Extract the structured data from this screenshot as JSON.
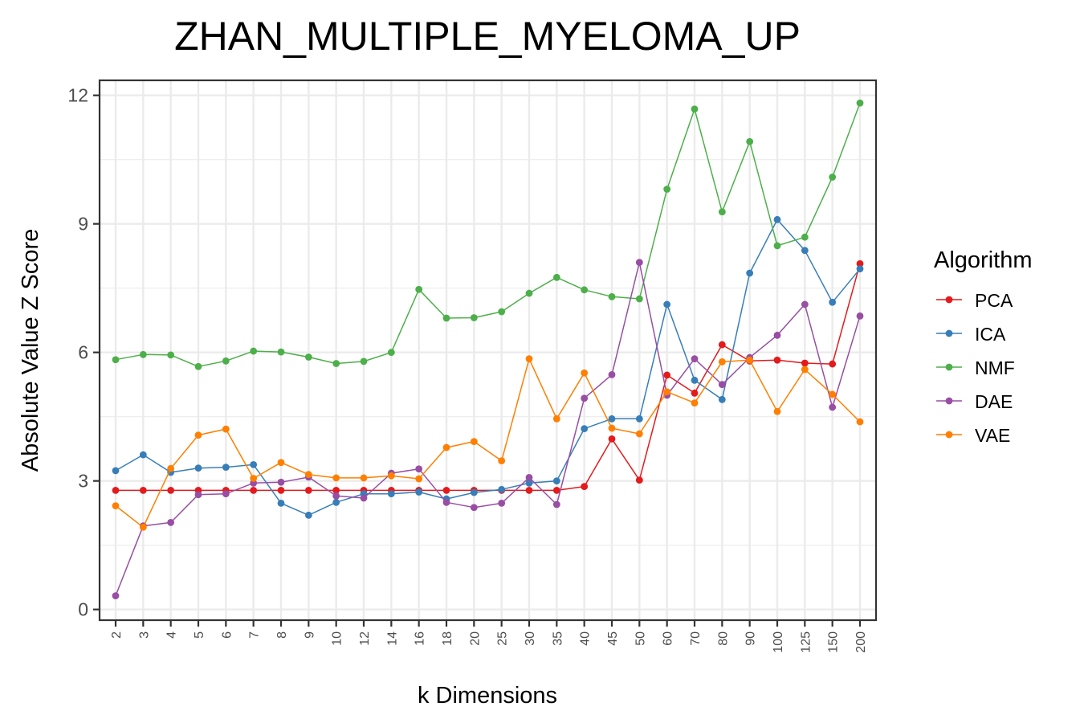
{
  "chart_data": {
    "type": "line",
    "title": "ZHAN_MULTIPLE_MYELOMA_UP",
    "xlabel": "k Dimensions",
    "ylabel": "Absolute Value Z Score",
    "categories": [
      "2",
      "3",
      "4",
      "5",
      "6",
      "7",
      "8",
      "9",
      "10",
      "12",
      "14",
      "16",
      "18",
      "20",
      "25",
      "30",
      "35",
      "40",
      "45",
      "50",
      "60",
      "70",
      "80",
      "90",
      "100",
      "125",
      "150",
      "200"
    ],
    "yticks": [
      0,
      3,
      6,
      9,
      12
    ],
    "ytick_labels": [
      "0",
      "3",
      "6",
      "9",
      "12"
    ],
    "ylim": [
      -0.25,
      12.35
    ],
    "grid": true,
    "legend": {
      "title": "Algorithm",
      "position": "right"
    },
    "series": [
      {
        "name": "PCA",
        "color": "#E41A1C",
        "values": [
          2.78,
          2.78,
          2.78,
          2.78,
          2.78,
          2.78,
          2.78,
          2.78,
          2.78,
          2.78,
          2.78,
          2.78,
          2.78,
          2.78,
          2.78,
          2.78,
          2.78,
          2.87,
          3.98,
          3.02,
          5.47,
          5.05,
          6.18,
          5.8,
          5.82,
          5.75,
          5.73,
          8.07
        ]
      },
      {
        "name": "ICA",
        "color": "#377EB8",
        "values": [
          3.24,
          3.61,
          3.2,
          3.3,
          3.32,
          3.38,
          2.48,
          2.2,
          2.5,
          2.7,
          2.7,
          2.74,
          2.58,
          2.73,
          2.8,
          2.95,
          3.0,
          4.22,
          4.45,
          4.45,
          7.12,
          5.35,
          4.9,
          7.85,
          9.1,
          8.38,
          7.17,
          7.95
        ]
      },
      {
        "name": "NMF",
        "color": "#4DAF4A",
        "values": [
          5.83,
          5.95,
          5.94,
          5.67,
          5.8,
          6.03,
          6.01,
          5.89,
          5.74,
          5.79,
          6.0,
          7.47,
          6.8,
          6.81,
          6.95,
          7.38,
          7.75,
          7.46,
          7.3,
          7.25,
          9.81,
          11.68,
          9.28,
          10.92,
          8.49,
          8.69,
          10.09,
          11.82
        ]
      },
      {
        "name": "DAE",
        "color": "#984EA3",
        "values": [
          0.32,
          1.95,
          2.03,
          2.68,
          2.7,
          2.95,
          2.97,
          3.09,
          2.65,
          2.6,
          3.18,
          3.28,
          2.5,
          2.38,
          2.48,
          3.08,
          2.45,
          4.93,
          5.48,
          8.1,
          5.0,
          5.85,
          5.25,
          5.88,
          6.4,
          7.12,
          4.72,
          6.85
        ]
      },
      {
        "name": "VAE",
        "color": "#FF7F00",
        "values": [
          2.42,
          1.92,
          3.29,
          4.07,
          4.21,
          3.06,
          3.43,
          3.15,
          3.07,
          3.07,
          3.12,
          3.05,
          3.78,
          3.92,
          3.47,
          5.85,
          4.45,
          5.52,
          4.23,
          4.1,
          5.08,
          4.82,
          5.78,
          5.82,
          4.62,
          5.6,
          5.02,
          4.38
        ]
      }
    ]
  }
}
